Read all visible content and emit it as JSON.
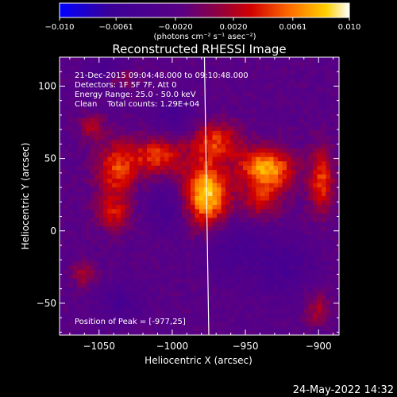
{
  "chart_data": {
    "type": "heatmap",
    "title": "Reconstructed RHESSI Image",
    "xlabel": "Heliocentric X (arcsec)",
    "ylabel": "Heliocentric Y (arcsec)",
    "xlim": [
      -1077,
      -886
    ],
    "ylim": [
      -72,
      120
    ],
    "x_ticks": [
      -1050,
      -1000,
      -950,
      -900
    ],
    "x_tick_labels": [
      "−1050",
      "−1000",
      "−950",
      "−900"
    ],
    "y_ticks": [
      -50,
      0,
      50,
      100
    ],
    "y_tick_labels": [
      "−50",
      "0",
      "50",
      "100"
    ],
    "colorbar": {
      "min": -0.01,
      "max": 0.01,
      "ticks": [
        -0.01,
        -0.0061,
        -0.002,
        0.002,
        0.0061,
        0.01
      ],
      "tick_labels": [
        "−0.010",
        "−0.0061",
        "−0.0020",
        "0.0020",
        "0.0061",
        "0.010"
      ],
      "unit_label": "(photons cm⁻² s⁻¹ asec⁻²)",
      "colors": [
        "#0000ff",
        "#3c0090",
        "#5a008a",
        "#8c0060",
        "#d00000",
        "#ff7000",
        "#ffd000",
        "#ffffff"
      ]
    },
    "annotations": [
      "21-Dec-2015 09:04:48.000 to 09:10:48.000",
      "Detectors: 1F 5F 7F, Att 0",
      "Energy Range: 25.0 - 50.0 keV",
      "Clean    Total counts: 1.29E+04",
      "Position of Peak = [-977,25]"
    ],
    "peak": {
      "x": -977,
      "y": 25
    },
    "sources": [
      {
        "x": -977,
        "y": 25,
        "sx": 11,
        "sy": 16,
        "amp": 1.0
      },
      {
        "x": -970,
        "y": 62,
        "sx": 12,
        "sy": 9,
        "amp": 0.55
      },
      {
        "x": -1010,
        "y": 52,
        "sx": 12,
        "sy": 9,
        "amp": 0.6
      },
      {
        "x": -1038,
        "y": 42,
        "sx": 10,
        "sy": 14,
        "amp": 0.6
      },
      {
        "x": -1040,
        "y": 12,
        "sx": 8,
        "sy": 8,
        "amp": 0.45
      },
      {
        "x": -943,
        "y": 45,
        "sx": 10,
        "sy": 9,
        "amp": 0.55
      },
      {
        "x": -928,
        "y": 42,
        "sx": 10,
        "sy": 10,
        "amp": 0.55
      },
      {
        "x": -940,
        "y": 22,
        "sx": 10,
        "sy": 10,
        "amp": 0.45
      },
      {
        "x": -898,
        "y": 35,
        "sx": 6,
        "sy": 16,
        "amp": 0.6
      },
      {
        "x": -1055,
        "y": 72,
        "sx": 6,
        "sy": 6,
        "amp": 0.35
      },
      {
        "x": -1060,
        "y": -30,
        "sx": 6,
        "sy": 6,
        "amp": 0.35
      },
      {
        "x": -900,
        "y": -55,
        "sx": 6,
        "sy": 8,
        "amp": 0.35
      },
      {
        "x": -1035,
        "y": 105,
        "sx": 8,
        "sy": 5,
        "amp": 0.3
      }
    ],
    "limb_line": {
      "x_top": -978,
      "x_bottom": -975
    }
  },
  "footer": {
    "timestamp": "24-May-2022 14:32"
  }
}
